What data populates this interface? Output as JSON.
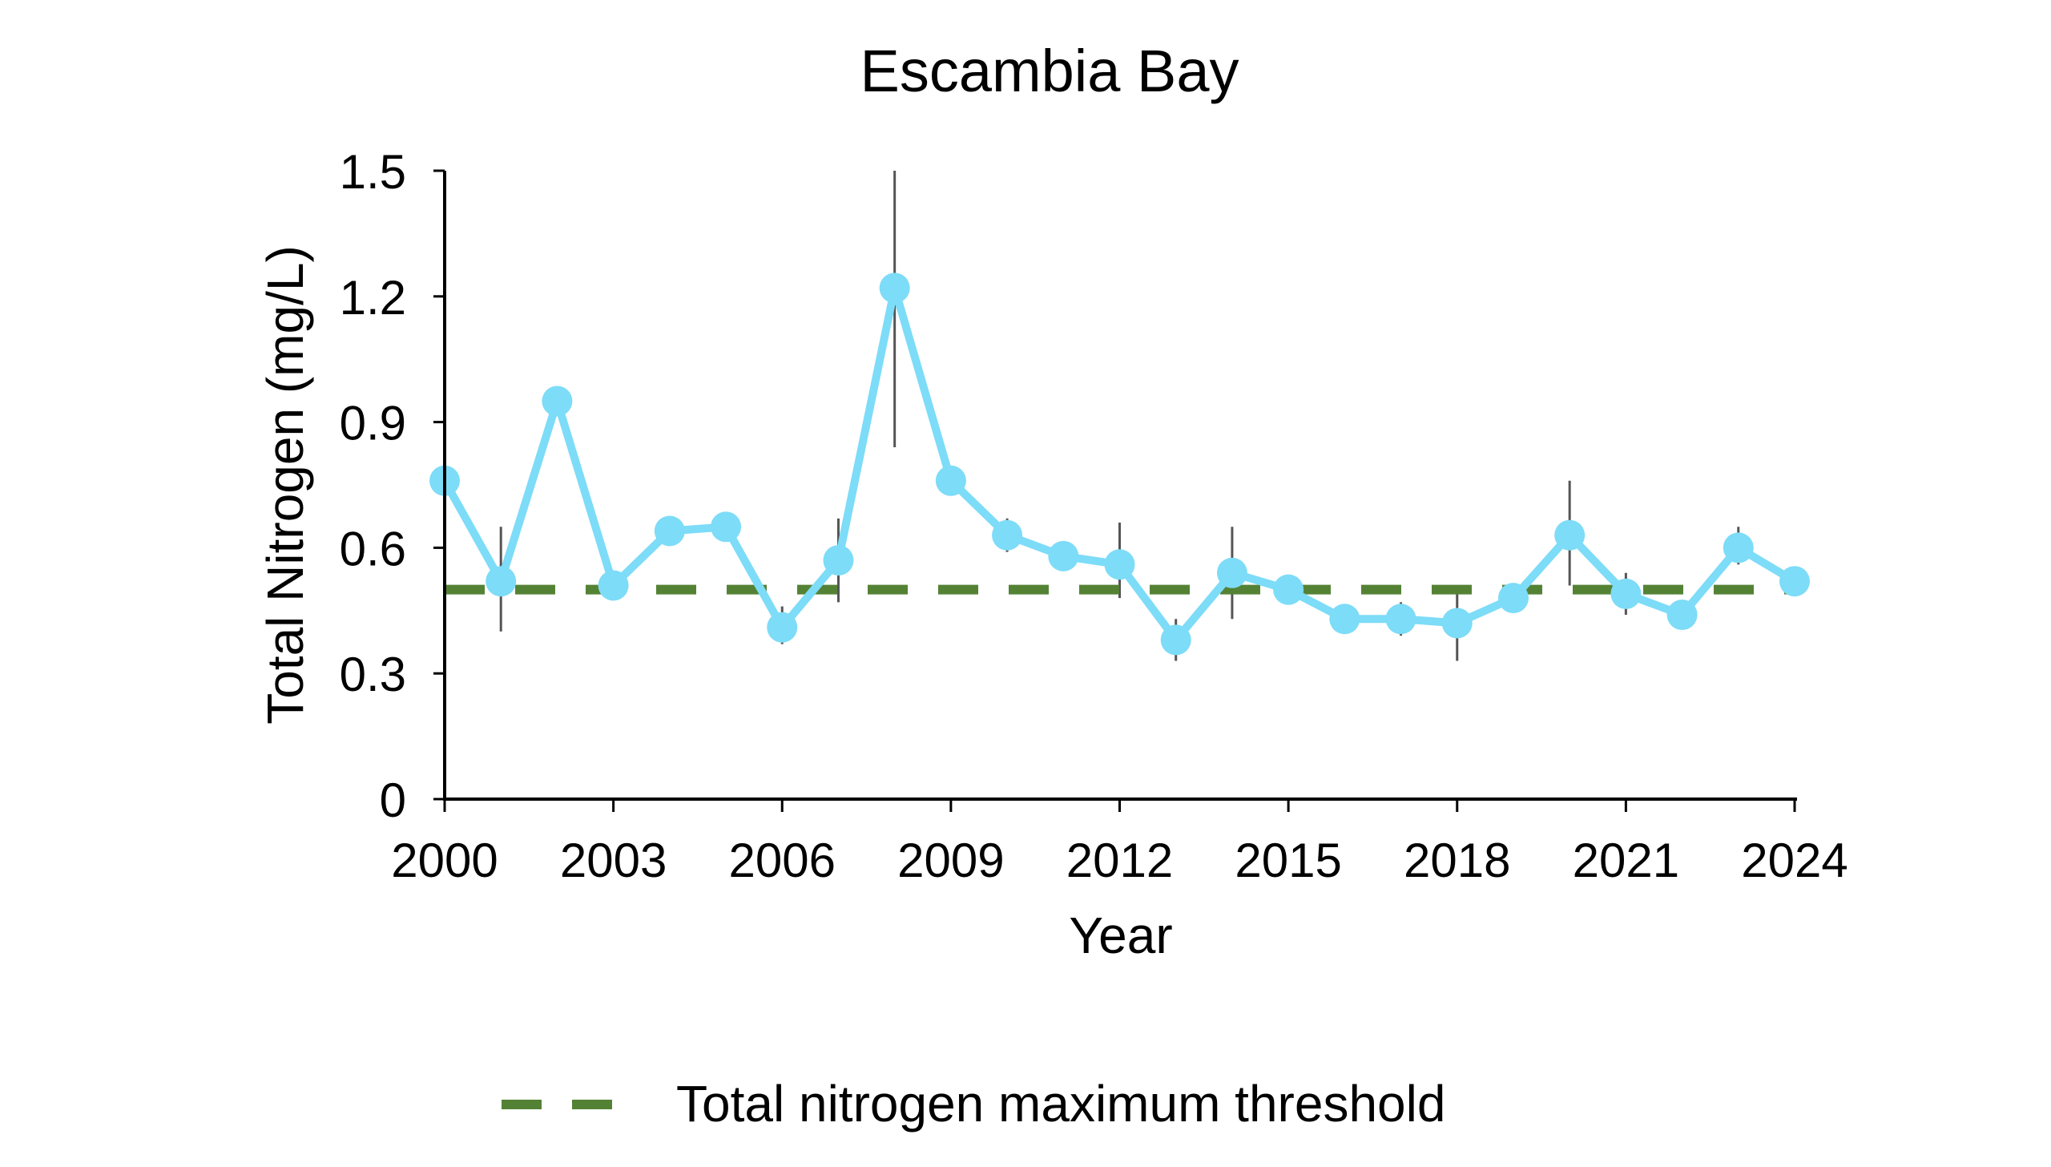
{
  "chart_data": {
    "type": "line",
    "title": "Escambia Bay",
    "xlabel": "Year",
    "ylabel": "Total Nitrogen (mg/L)",
    "xlim": [
      2000,
      2024
    ],
    "ylim": [
      0,
      1.5
    ],
    "xticks": [
      2000,
      2003,
      2006,
      2009,
      2012,
      2015,
      2018,
      2021,
      2024
    ],
    "yticks": [
      0,
      0.3,
      0.6,
      0.9,
      1.2,
      1.5
    ],
    "ytick_labels": [
      "0",
      "0.3",
      "0.6",
      "0.9",
      "1.2",
      "1.5"
    ],
    "grid": false,
    "legend_position": "bottom",
    "series": [
      {
        "color": "#7ddcf7",
        "marker": "circle",
        "x": [
          2000,
          2001,
          2002,
          2003,
          2004,
          2005,
          2006,
          2007,
          2008,
          2009,
          2010,
          2011,
          2012,
          2013,
          2014,
          2015,
          2016,
          2017,
          2018,
          2019,
          2020,
          2021,
          2022,
          2023,
          2024
        ],
        "y": [
          0.76,
          0.52,
          0.95,
          0.51,
          0.64,
          0.65,
          0.41,
          0.57,
          1.22,
          0.76,
          0.63,
          0.58,
          0.56,
          0.38,
          0.54,
          0.5,
          0.43,
          0.43,
          0.42,
          0.48,
          0.63,
          0.49,
          0.44,
          0.6,
          0.52
        ],
        "error_low": [
          0.7,
          0.4,
          0.92,
          0.48,
          0.62,
          0.63,
          0.37,
          0.47,
          0.84,
          0.74,
          0.59,
          0.56,
          0.48,
          0.33,
          0.43,
          0.48,
          0.41,
          0.39,
          0.33,
          0.45,
          0.51,
          0.44,
          0.42,
          0.56,
          0.5
        ],
        "error_high": [
          0.84,
          0.65,
          0.98,
          0.54,
          0.66,
          0.67,
          0.46,
          0.67,
          1.5,
          0.78,
          0.67,
          0.6,
          0.66,
          0.43,
          0.65,
          0.52,
          0.45,
          0.47,
          0.49,
          0.51,
          0.76,
          0.54,
          0.46,
          0.65,
          0.54
        ]
      },
      {
        "name": "Total nitrogen maximum threshold",
        "color": "#548235",
        "style": "dashed",
        "x": [
          2000,
          2024
        ],
        "y": [
          0.5,
          0.5
        ]
      }
    ]
  }
}
